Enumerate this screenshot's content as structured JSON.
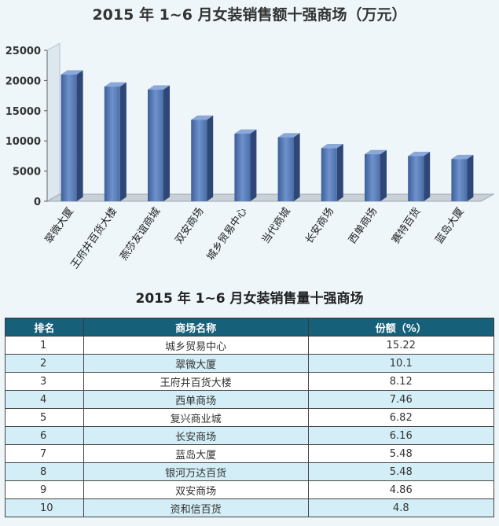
{
  "chart_data": [
    {
      "type": "bar",
      "title": "2015 年 1~6 月女装销售额十强商场（万元）",
      "categories": [
        "翠微大厦",
        "王府井百货大楼",
        "燕莎友谊商城",
        "双安商场",
        "城乡贸易中心",
        "当代商城",
        "长安商场",
        "西单商场",
        "赛特百货",
        "蓝岛大厦"
      ],
      "values": [
        21000,
        19000,
        18500,
        13500,
        11200,
        10600,
        8800,
        7800,
        7500,
        7000
      ],
      "yticks": [
        0,
        5000,
        10000,
        15000,
        20000,
        25000
      ],
      "ylim": [
        0,
        25000
      ],
      "bar_color": "#4a6fa8",
      "grid": false
    },
    {
      "type": "table",
      "title": "2015 年 1~6 月女装销售量十强商场",
      "columns": [
        "排名",
        "商场名称",
        "份额（%）"
      ],
      "rows": [
        [
          "1",
          "城乡贸易中心",
          "15.22"
        ],
        [
          "2",
          "翠微大厦",
          "10.1"
        ],
        [
          "3",
          "王府井百货大楼",
          "8.12"
        ],
        [
          "4",
          "西单商场",
          "7.46"
        ],
        [
          "5",
          "复兴商业城",
          "6.82"
        ],
        [
          "6",
          "长安商场",
          "6.16"
        ],
        [
          "7",
          "蓝岛大厦",
          "5.48"
        ],
        [
          "8",
          "银河万达百货",
          "5.48"
        ],
        [
          "9",
          "双安商场",
          "4.86"
        ],
        [
          "10",
          "资和信百货",
          "4.8"
        ]
      ],
      "header_color": "#17607a",
      "stripe_color": "#d3eef6"
    }
  ]
}
